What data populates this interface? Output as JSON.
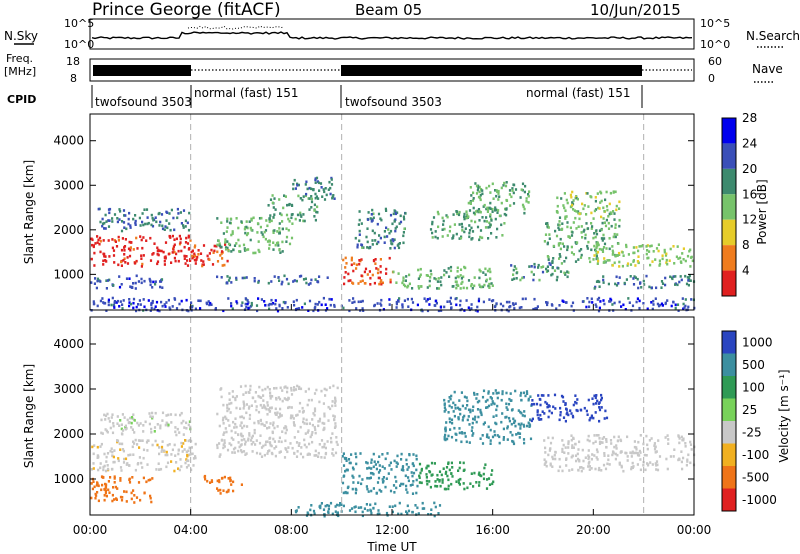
{
  "header": {
    "station": "Prince George (fitACF)",
    "beam": "Beam 05",
    "date": "10/Jun/2015"
  },
  "top_panels": {
    "nsky_label": "N.Sky",
    "nsky_left_ticks": [
      "10^5",
      "10^0"
    ],
    "nsky_right_ticks": [
      "10^5",
      "10^0"
    ],
    "nsearch_label": "N.Search",
    "freq_label_line1": "Freq.",
    "freq_label_line2": "[MHz]",
    "freq_ticks": [
      "18",
      "8"
    ],
    "nave_ticks": [
      "60",
      "0"
    ],
    "nave_label": "Nave",
    "cpid_label": "CPID",
    "cpid_segments": [
      {
        "name": "twofsound 3503",
        "start_hour": 0,
        "end_hour": 4
      },
      {
        "name": "normal (fast) 151",
        "start_hour": 4,
        "end_hour": 10
      },
      {
        "name": "twofsound 3503",
        "start_hour": 10,
        "end_hour": 22
      },
      {
        "name": "normal (fast) 151",
        "start_hour": 22,
        "end_hour": 24
      }
    ]
  },
  "chart_data": [
    {
      "type": "heatmap",
      "title": "",
      "ylabel": "Slant Range [km]",
      "ylim": [
        200,
        4600
      ],
      "yticks": [
        "1000",
        "2000",
        "3000",
        "4000"
      ],
      "xlim_hours": [
        0,
        24
      ],
      "xticks": [
        "00:00",
        "04:00",
        "08:00",
        "12:00",
        "16:00",
        "20:00",
        "00:00"
      ],
      "colorbar_label": "Power [dB]",
      "colorbar_ticks": [
        "4",
        "8",
        "12",
        "16",
        "20",
        "24",
        "28"
      ],
      "colorbar_range": [
        0,
        30
      ],
      "colors": [
        "#0000ee",
        "#3a4fb8",
        "#3d8a6e",
        "#77c36b",
        "#e6cc2a",
        "#ef7c1e",
        "#e02020"
      ],
      "regions": [
        {
          "t0": 0.0,
          "t1": 4.2,
          "r0": 1200,
          "r1": 1900,
          "level": 28
        },
        {
          "t0": 0.3,
          "t1": 4.0,
          "r0": 2000,
          "r1": 2500,
          "level": 9
        },
        {
          "t0": 0.0,
          "t1": 3.0,
          "r0": 700,
          "r1": 1000,
          "level": 7
        },
        {
          "t0": 4.0,
          "t1": 5.5,
          "r0": 1200,
          "r1": 1700,
          "level": 26
        },
        {
          "t0": 5.0,
          "t1": 8.0,
          "r0": 1500,
          "r1": 2300,
          "level": 14
        },
        {
          "t0": 7.0,
          "t1": 9.0,
          "r0": 2200,
          "r1": 2800,
          "level": 12
        },
        {
          "t0": 8.0,
          "t1": 9.8,
          "r0": 2700,
          "r1": 3200,
          "level": 10
        },
        {
          "t0": 5.0,
          "t1": 9.5,
          "r0": 800,
          "r1": 1000,
          "level": 8
        },
        {
          "t0": 10.0,
          "t1": 12.0,
          "r0": 800,
          "r1": 1400,
          "level": 25
        },
        {
          "t0": 10.5,
          "t1": 12.5,
          "r0": 1600,
          "r1": 2500,
          "level": 10
        },
        {
          "t0": 12.0,
          "t1": 16.0,
          "r0": 700,
          "r1": 1200,
          "level": 14
        },
        {
          "t0": 13.5,
          "t1": 16.5,
          "r0": 1800,
          "r1": 2500,
          "level": 12
        },
        {
          "t0": 15.0,
          "t1": 17.5,
          "r0": 2400,
          "r1": 3100,
          "level": 13
        },
        {
          "t0": 16.5,
          "t1": 19.0,
          "r0": 900,
          "r1": 1300,
          "level": 11
        },
        {
          "t0": 18.0,
          "t1": 21.0,
          "r0": 1300,
          "r1": 2200,
          "level": 13
        },
        {
          "t0": 18.5,
          "t1": 21.0,
          "r0": 2200,
          "r1": 2900,
          "level": 15
        },
        {
          "t0": 20.0,
          "t1": 24.0,
          "r0": 1200,
          "r1": 1700,
          "level": 16
        },
        {
          "t0": 20.0,
          "t1": 24.0,
          "r0": 700,
          "r1": 1000,
          "level": 9
        },
        {
          "t0": 0.0,
          "t1": 24.0,
          "r0": 200,
          "r1": 500,
          "level": 6
        }
      ]
    },
    {
      "type": "heatmap",
      "title": "",
      "ylabel": "Slant Range [km]",
      "ylim": [
        200,
        4600
      ],
      "yticks": [
        "1000",
        "2000",
        "3000",
        "4000"
      ],
      "xlim_hours": [
        0,
        24
      ],
      "xticks": [
        "00:00",
        "04:00",
        "08:00",
        "12:00",
        "16:00",
        "20:00",
        "00:00"
      ],
      "xlabel": "Time UT",
      "colorbar_label": "Velocity [m s⁻¹]",
      "colorbar_ticks": [
        "1000",
        "500",
        "100",
        "25",
        "-25",
        "-100",
        "-500",
        "-1000"
      ],
      "colors": [
        "#2a45c0",
        "#3c8fa0",
        "#2f9a55",
        "#78d25a",
        "#c8c8c8",
        "#f1b020",
        "#ef7418",
        "#e02020"
      ],
      "regions": [
        {
          "t0": 0.0,
          "t1": 4.2,
          "r0": 1200,
          "r1": 1900,
          "level": -10
        },
        {
          "t0": 0.3,
          "t1": 4.0,
          "r0": 2000,
          "r1": 2500,
          "level": 10
        },
        {
          "t0": 0.0,
          "t1": 2.5,
          "r0": 500,
          "r1": 1100,
          "level": -200
        },
        {
          "t0": 4.5,
          "t1": 6.0,
          "r0": 700,
          "r1": 1100,
          "level": -300
        },
        {
          "t0": 5.0,
          "t1": 9.8,
          "r0": 1500,
          "r1": 3100,
          "level": 5
        },
        {
          "t0": 10.0,
          "t1": 13.0,
          "r0": 700,
          "r1": 1600,
          "level": 300
        },
        {
          "t0": 13.0,
          "t1": 16.0,
          "r0": 800,
          "r1": 1400,
          "level": 80
        },
        {
          "t0": 14.0,
          "t1": 17.5,
          "r0": 1800,
          "r1": 3000,
          "level": 200
        },
        {
          "t0": 17.5,
          "t1": 20.5,
          "r0": 2300,
          "r1": 2900,
          "level": 600
        },
        {
          "t0": 18.0,
          "t1": 24.0,
          "r0": 1200,
          "r1": 2000,
          "level": 0
        },
        {
          "t0": 8.0,
          "t1": 14.0,
          "r0": 200,
          "r1": 500,
          "level": 150
        }
      ]
    }
  ]
}
